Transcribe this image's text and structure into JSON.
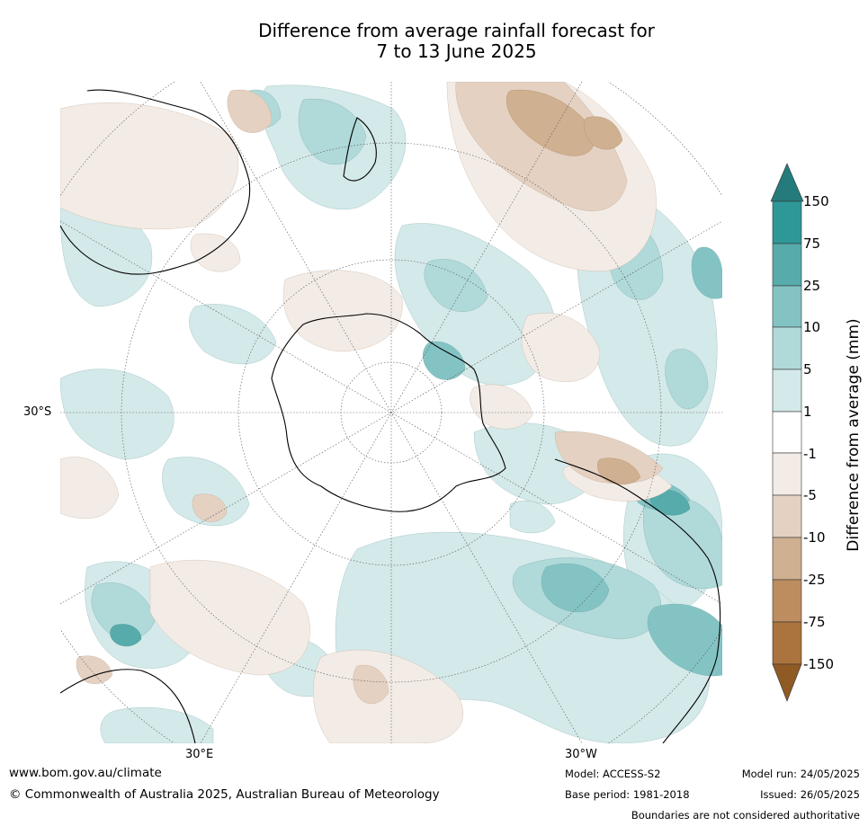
{
  "title": {
    "line1": "Difference from average rainfall forecast for",
    "line2": "7 to 13 June 2025"
  },
  "map_labels": {
    "lat_30s": "30°S",
    "lon_30e": "30°E",
    "lon_30w": "30°W"
  },
  "legend": {
    "label": "Difference from average (mm)",
    "ticks": [
      "150",
      "75",
      "25",
      "10",
      "5",
      "1",
      "-1",
      "-5",
      "-10",
      "-25",
      "-75",
      "-150"
    ],
    "colors": {
      "gt150": "#257b7b",
      "75_150": "#2e9898",
      "25_75": "#57abab",
      "10_25": "#84c3c3",
      "5_10": "#b0d9d9",
      "1_5": "#d4e9e9",
      "neg1_1": "#ffffff",
      "neg5_neg1": "#f3ece6",
      "neg10_neg5": "#e4d1c2",
      "neg25_neg10": "#cfb090",
      "neg75_neg25": "#bd8d60",
      "neg150_neg75": "#ab733d",
      "lt_neg150": "#8f5a24"
    }
  },
  "footer": {
    "url": "www.bom.gov.au/climate",
    "copyright": "© Commonwealth of Australia 2025, Australian Bureau of Meteorology",
    "model": "Model: ACCESS-S2",
    "base_period": "Base period: 1981-2018",
    "model_run": "Model run: 24/05/2025",
    "issued": "Issued: 26/05/2025",
    "disclaimer": "Boundaries are not considered authoritative"
  }
}
